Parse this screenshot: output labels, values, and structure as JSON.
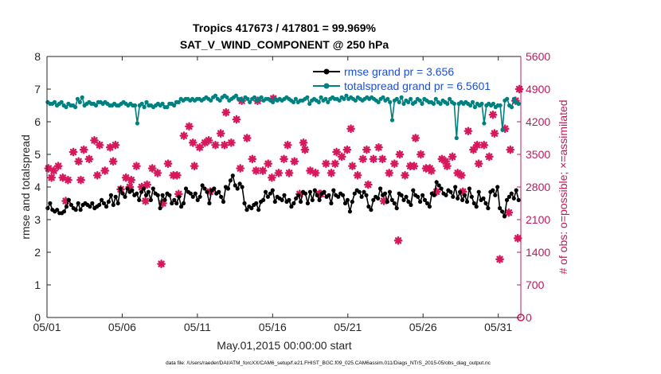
{
  "chart_data": {
    "type": "line",
    "title_line1": "Tropics 417673 / 417801 = 99.969%",
    "title_line2": "SAT_V_WIND_COMPONENT @ 250 hPa",
    "xlabel": "May.01,2015 00:00:00 start",
    "ylabel_left": "rmse and totalspread",
    "ylabel_right": "# of obs: o=possible; ×=assimilated",
    "footer": "data file: /Users/raeder/DAI/ATM_forcXX/CAM6_setup/f.e21.FHIST_BGC.f09_025.CAM6assim.011/Diags_NTrS_2015-05/obs_diag_output.nc",
    "xlim": [
      0,
      31.5
    ],
    "xticks": [
      0,
      5,
      10,
      15,
      20,
      25,
      30
    ],
    "xtick_labels": [
      "05/01",
      "05/06",
      "05/11",
      "05/16",
      "05/21",
      "05/26",
      "05/31"
    ],
    "ylim_left": [
      0,
      8
    ],
    "yticks_left": [
      "0",
      "1",
      "2",
      "3",
      "4",
      "5",
      "6",
      "7",
      "8"
    ],
    "ylim_right": [
      0,
      5600
    ],
    "yticks_right": [
      "0",
      "700",
      "1400",
      "2100",
      "2800",
      "3500",
      "4200",
      "4900",
      "5600"
    ],
    "colors": {
      "rmse": "#000000",
      "spread": "#00807f",
      "obs": "#d6185c",
      "right_axis": "#c2185b",
      "legend_text": "#1a4fd6",
      "axis": "#262626"
    },
    "legend": [
      {
        "label": "rmse grand pr = 3.656"
      },
      {
        "label": "totalspread grand pr = 6.5601"
      }
    ],
    "series": [
      {
        "name": "rmse",
        "values": [
          3.35,
          3.5,
          3.3,
          3.25,
          3.3,
          3.2,
          3.2,
          3.25,
          3.4,
          3.6,
          3.45,
          3.35,
          3.3,
          3.5,
          3.3,
          3.45,
          3.5,
          3.45,
          3.4,
          3.5,
          3.35,
          3.4,
          3.45,
          3.6,
          3.5,
          3.4,
          3.55,
          3.75,
          3.45,
          3.7,
          3.5,
          3.95,
          3.8,
          3.7,
          3.95,
          3.85,
          3.9,
          3.75,
          3.8,
          3.6,
          3.85,
          3.95,
          3.75,
          3.85,
          3.6,
          3.95,
          3.8,
          3.75,
          3.35,
          3.75,
          3.6,
          3.8,
          3.75,
          3.5,
          3.6,
          3.5,
          3.7,
          3.4,
          3.5,
          3.95,
          3.85,
          3.8,
          3.7,
          3.8,
          3.6,
          3.7,
          4.05,
          3.95,
          3.85,
          3.5,
          3.9,
          3.95,
          3.8,
          3.85,
          3.7,
          3.55,
          4.0,
          3.95,
          4.2,
          4.35,
          4.05,
          3.95,
          4.1,
          4.0,
          3.5,
          3.3,
          3.4,
          3.35,
          3.45,
          3.5,
          3.3,
          3.55,
          3.6,
          3.85,
          3.7,
          3.8,
          3.9,
          3.55,
          3.7,
          3.65,
          3.6,
          3.75,
          3.55,
          3.6,
          3.4,
          3.5,
          3.65,
          3.75,
          3.55,
          3.85,
          3.8,
          3.5,
          3.85,
          3.6,
          3.9,
          3.75,
          3.6,
          3.8,
          3.85,
          3.7,
          3.75,
          3.5,
          3.9,
          3.75,
          3.7,
          3.8,
          3.75,
          3.5,
          3.6,
          3.25,
          3.55,
          3.8,
          3.9,
          3.85,
          3.7,
          3.85,
          3.75,
          3.4,
          3.3,
          3.6,
          3.7,
          3.65,
          3.95,
          3.75,
          3.8,
          3.55,
          3.85,
          3.6,
          3.5,
          3.35,
          3.8,
          3.75,
          3.6,
          3.7,
          3.55,
          3.45,
          3.9,
          3.75,
          3.7,
          3.55,
          3.75,
          3.6,
          3.5,
          3.4,
          3.8,
          3.75,
          4.15,
          4.05,
          3.95,
          3.8,
          3.75,
          3.9,
          3.85,
          3.7,
          4.0,
          3.65,
          3.85,
          3.6,
          3.75,
          3.55,
          3.95,
          3.7,
          3.5,
          3.4,
          3.85,
          3.6,
          3.65,
          3.5,
          3.35,
          3.85,
          3.9,
          3.75,
          4.0,
          3.35,
          3.25,
          3.1,
          3.6,
          3.7,
          3.8,
          3.65,
          3.9,
          3.6
        ]
      },
      {
        "name": "totalspread",
        "values": [
          6.6,
          6.55,
          6.55,
          6.6,
          6.5,
          6.55,
          6.6,
          6.5,
          6.45,
          6.55,
          6.5,
          6.5,
          6.45,
          6.7,
          6.6,
          6.75,
          6.5,
          6.55,
          6.6,
          6.55,
          6.55,
          6.5,
          6.6,
          6.6,
          6.55,
          6.6,
          6.55,
          6.5,
          6.5,
          6.55,
          6.5,
          6.5,
          6.55,
          6.6,
          6.55,
          6.5,
          6.55,
          6.5,
          6.5,
          5.95,
          6.5,
          6.55,
          6.45,
          6.6,
          6.5,
          6.5,
          6.45,
          6.5,
          6.55,
          6.5,
          6.55,
          6.45,
          6.45,
          6.55,
          6.55,
          6.5,
          6.6,
          6.6,
          6.7,
          6.65,
          6.7,
          6.7,
          6.65,
          6.7,
          6.65,
          6.7,
          6.7,
          6.65,
          6.7,
          6.75,
          6.7,
          6.65,
          6.75,
          6.8,
          6.7,
          6.65,
          6.75,
          6.8,
          6.75,
          6.65,
          6.7,
          6.75,
          6.8,
          6.7,
          6.7,
          6.65,
          6.75,
          6.7,
          6.6,
          6.7,
          6.75,
          6.65,
          6.7,
          6.75,
          6.65,
          6.7,
          6.7,
          6.65,
          6.6,
          6.7,
          6.65,
          6.7,
          6.65,
          6.7,
          6.75,
          6.7,
          6.65,
          6.6,
          6.7,
          6.6,
          6.65,
          6.65,
          6.7,
          6.75,
          6.55,
          6.65,
          6.7,
          6.65,
          6.6,
          6.75,
          6.65,
          6.7,
          6.6,
          6.7,
          6.75,
          6.7,
          6.7,
          6.65,
          6.75,
          6.7,
          6.8,
          6.7,
          6.75,
          6.7,
          6.65,
          6.75,
          6.7,
          6.65,
          6.7,
          6.75,
          6.7,
          6.75,
          6.7,
          6.65,
          6.6,
          6.7,
          6.75,
          6.65,
          6.7,
          6.6,
          6.05,
          6.65,
          6.7,
          6.6,
          6.75,
          6.55,
          6.65,
          6.6,
          6.7,
          6.55,
          6.6,
          6.7,
          6.65,
          6.55,
          6.7,
          6.65,
          6.6,
          6.6,
          6.55,
          6.7,
          6.6,
          6.55,
          6.65,
          6.6,
          6.55,
          6.7,
          6.6,
          6.55,
          5.5,
          6.55,
          6.6,
          6.55,
          6.6,
          6.55,
          6.5,
          6.6,
          6.45,
          6.55,
          6.5,
          6.55,
          5.95,
          6.5,
          6.55,
          6.5,
          6.55,
          6.45,
          6.5,
          6.5,
          5.75,
          6.65,
          6.7,
          6.5,
          6.45,
          6.7,
          6.6,
          6.55
        ]
      },
      {
        "name": "obs",
        "x": [
          0.1,
          0.45,
          0.75,
          1.05,
          1.4,
          1.75,
          2.1,
          2.45,
          2.8,
          3.15,
          3.5,
          3.85,
          4.2,
          4.55,
          4.9,
          5.25,
          5.6,
          5.95,
          6.3,
          6.65,
          7.0,
          7.35,
          7.7,
          8.05,
          8.4,
          8.75,
          9.1,
          9.45,
          9.8,
          10.15,
          10.5,
          10.85,
          11.2,
          11.55,
          11.9,
          12.25,
          12.6,
          12.95,
          13.3,
          13.65,
          14.0,
          14.35,
          14.7,
          15.05,
          15.4,
          15.75,
          16.1,
          16.45,
          16.8,
          17.15,
          17.5,
          17.85,
          18.2,
          18.55,
          18.9,
          19.25,
          19.6,
          19.95,
          20.3,
          20.65,
          21.0,
          21.35,
          21.7,
          22.05,
          22.4,
          22.75,
          23.1,
          23.45,
          23.8,
          24.15,
          24.5,
          24.85,
          25.2,
          25.55,
          25.9,
          26.25,
          26.6,
          26.95,
          27.3,
          27.65,
          28.0,
          28.35,
          28.7,
          29.05,
          29.4,
          29.75,
          30.1,
          30.45,
          30.8,
          31.15,
          31.4,
          0.3,
          1.25,
          2.25,
          3.35,
          4.4,
          5.5,
          6.55,
          7.6,
          8.65,
          9.7,
          10.75,
          11.8,
          12.85,
          13.9,
          14.95,
          16.0,
          17.05,
          18.1,
          19.15,
          20.2,
          21.25,
          22.3,
          23.35,
          24.4,
          25.45,
          26.5,
          27.55,
          28.6,
          29.65,
          30.7,
          31.3
        ],
        "values": [
          3200,
          3150,
          3250,
          3000,
          2950,
          3550,
          3350,
          3600,
          3400,
          3800,
          3700,
          3150,
          3650,
          3700,
          2750,
          3000,
          2950,
          3250,
          2800,
          2850,
          3200,
          3100,
          2450,
          3300,
          3050,
          2650,
          3900,
          4100,
          3250,
          3650,
          3750,
          2700,
          3700,
          3950,
          4400,
          3750,
          4250,
          4650,
          3850,
          3400,
          4650,
          3150,
          3300,
          4700,
          3100,
          3400,
          3100,
          3350,
          2650,
          3600,
          3150,
          3100,
          2650,
          3300,
          3100,
          3550,
          3450,
          3600,
          3250,
          3050,
          3400,
          2850,
          3400,
          3650,
          2500,
          3100,
          3300,
          3500,
          3050,
          3250,
          3850,
          3500,
          3200,
          3150,
          2700,
          3400,
          3250,
          3450,
          3100,
          2700,
          4000,
          3600,
          3300,
          3700,
          3450,
          3950,
          1250,
          4050,
          3600,
          4650,
          4900,
          3000,
          2500,
          2950,
          3050,
          3350,
          2800,
          2500,
          1150,
          3050,
          3750,
          3800,
          3700,
          3200,
          3150,
          3000,
          3700,
          3750,
          2650,
          3300,
          4050,
          3600,
          3400,
          1650,
          3250,
          3200,
          3350,
          3050,
          3700,
          4350,
          2250,
          1700
        ]
      }
    ]
  }
}
